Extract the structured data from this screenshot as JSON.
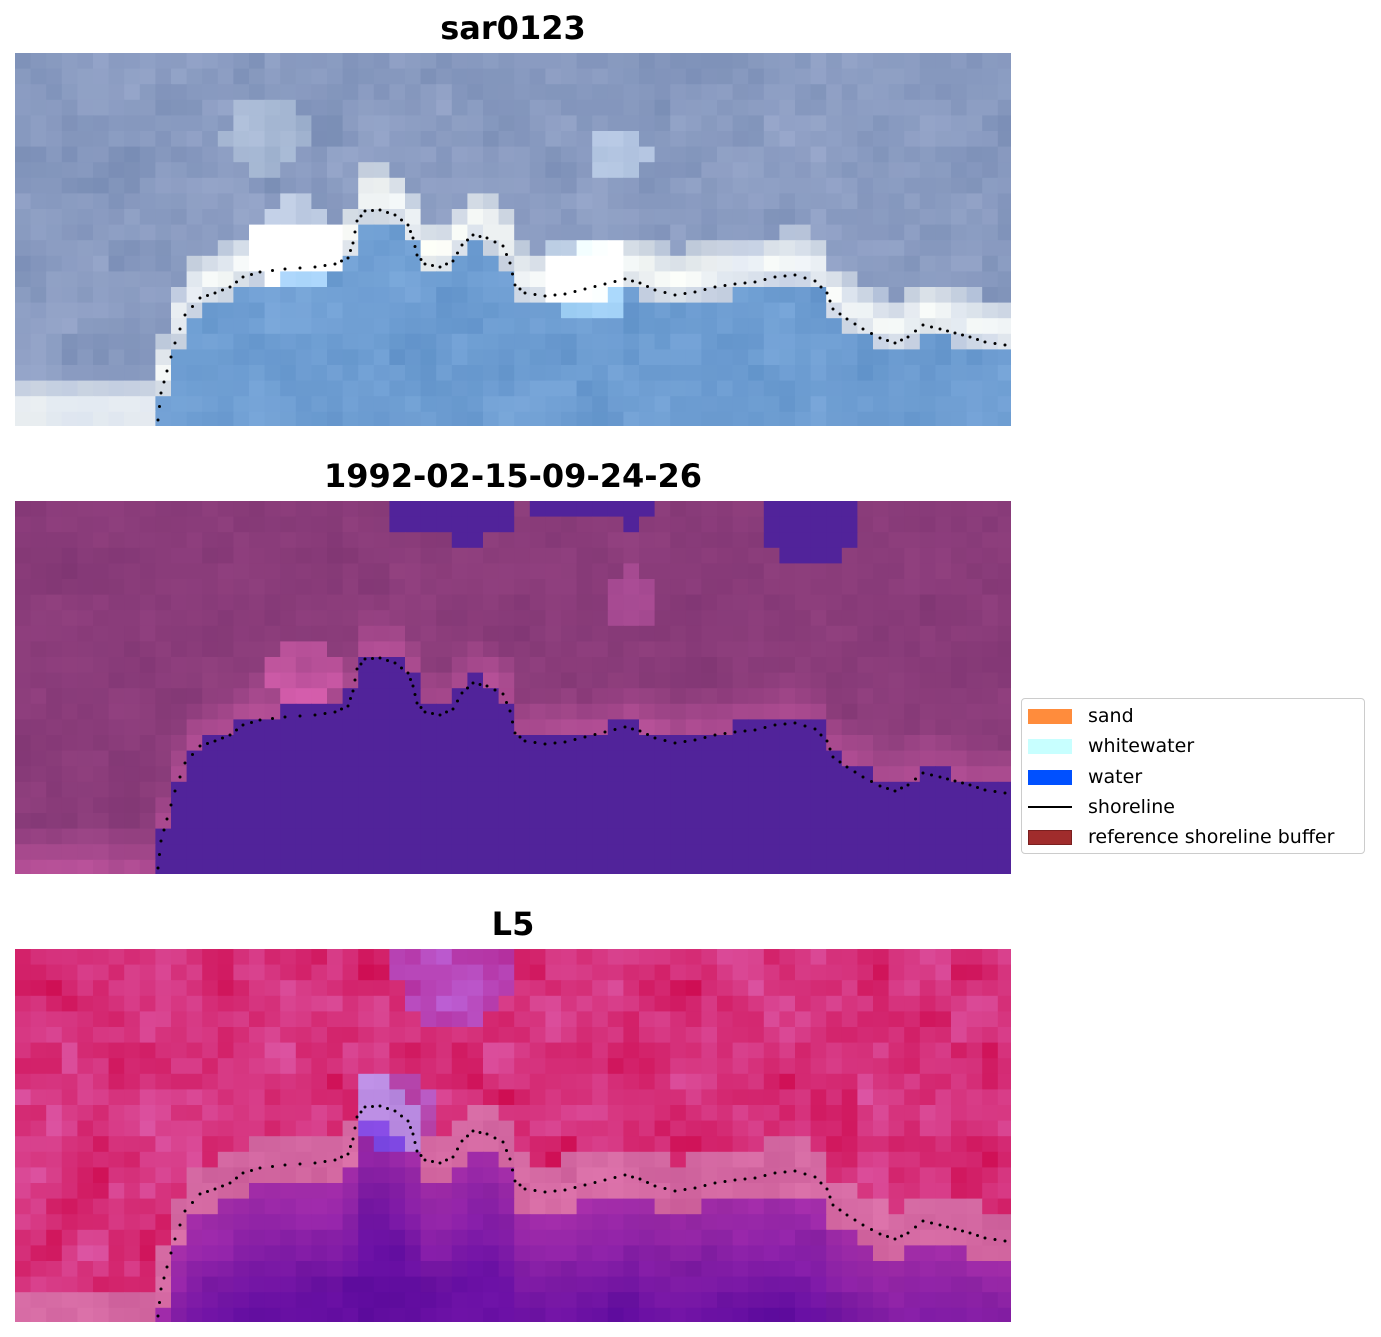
{
  "panels": [
    {
      "title": "sar0123",
      "palette": "rgb"
    },
    {
      "title": "1992-02-15-09-24-26",
      "palette": "classified"
    },
    {
      "title": "L5",
      "palette": "index"
    }
  ],
  "legend": {
    "items": [
      {
        "label": "sand",
        "type": "patch",
        "color": "#ff8c3c"
      },
      {
        "label": "whitewater",
        "type": "patch",
        "color": "#c8ffff"
      },
      {
        "label": "water",
        "type": "patch",
        "color": "#0050ff"
      },
      {
        "label": "shoreline",
        "type": "line",
        "color": "#000000"
      },
      {
        "label": "reference shoreline buffer",
        "type": "patch",
        "color": "#a02c2c",
        "edge": "#7a1f1f"
      }
    ]
  },
  "colors": {
    "classified_water": "#51239a",
    "classified_land": "#8a3c7a",
    "index_high": "#c4093a",
    "index_low": "#5a0a9e"
  }
}
